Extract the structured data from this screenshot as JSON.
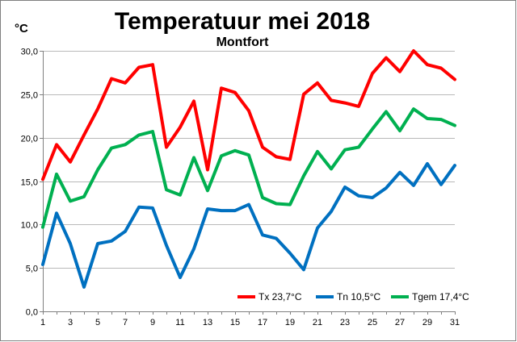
{
  "chart_data": {
    "type": "line",
    "title": "Temperatuur mei 2018",
    "subtitle": "Montfort",
    "ylabel": "°C",
    "xlabel": "",
    "ylim": [
      0,
      30
    ],
    "yticks": [
      "0,0",
      "5,0",
      "10,0",
      "15,0",
      "20,0",
      "25,0",
      "30,0"
    ],
    "ytick_values": [
      0,
      5,
      10,
      15,
      20,
      25,
      30
    ],
    "x": [
      1,
      2,
      3,
      4,
      5,
      6,
      7,
      8,
      9,
      10,
      11,
      12,
      13,
      14,
      15,
      16,
      17,
      18,
      19,
      20,
      21,
      22,
      23,
      24,
      25,
      26,
      27,
      28,
      29,
      30,
      31
    ],
    "xticks": [
      "1",
      "3",
      "5",
      "7",
      "9",
      "11",
      "13",
      "15",
      "17",
      "19",
      "21",
      "23",
      "25",
      "27",
      "29",
      "31"
    ],
    "xtick_values": [
      1,
      3,
      5,
      7,
      9,
      11,
      13,
      15,
      17,
      19,
      21,
      23,
      25,
      27,
      29,
      31
    ],
    "grid": true,
    "legend_position": "bottom-right",
    "series": [
      {
        "name": "Tx 23,7°C",
        "color": "#ff0000",
        "values": [
          15.2,
          19.2,
          17.2,
          20.3,
          23.3,
          26.8,
          26.3,
          28.1,
          28.4,
          18.9,
          21.2,
          24.2,
          16.3,
          25.7,
          25.2,
          23.1,
          18.9,
          17.8,
          17.5,
          25.0,
          26.3,
          24.3,
          24.0,
          23.6,
          27.4,
          29.2,
          27.6,
          30.0,
          28.4,
          28.0,
          26.7
        ]
      },
      {
        "name": "Tn 10,5°C",
        "color": "#0070c0",
        "values": [
          5.4,
          11.3,
          7.8,
          2.8,
          7.8,
          8.1,
          9.2,
          12.0,
          11.9,
          7.6,
          3.9,
          7.2,
          11.8,
          11.6,
          11.6,
          12.3,
          8.8,
          8.4,
          6.7,
          4.8,
          9.6,
          11.5,
          14.3,
          13.3,
          13.1,
          14.2,
          16.0,
          14.5,
          17.0,
          14.6,
          16.8
        ]
      },
      {
        "name": "Tgem 17,4°C",
        "color": "#00b050",
        "values": [
          9.7,
          15.8,
          12.7,
          13.2,
          16.3,
          18.8,
          19.2,
          20.3,
          20.7,
          14.0,
          13.4,
          17.7,
          13.9,
          17.9,
          18.5,
          18.0,
          13.1,
          12.4,
          12.3,
          15.6,
          18.4,
          16.4,
          18.6,
          18.9,
          21.0,
          23.0,
          20.8,
          23.3,
          22.2,
          22.1,
          21.4
        ]
      }
    ]
  }
}
